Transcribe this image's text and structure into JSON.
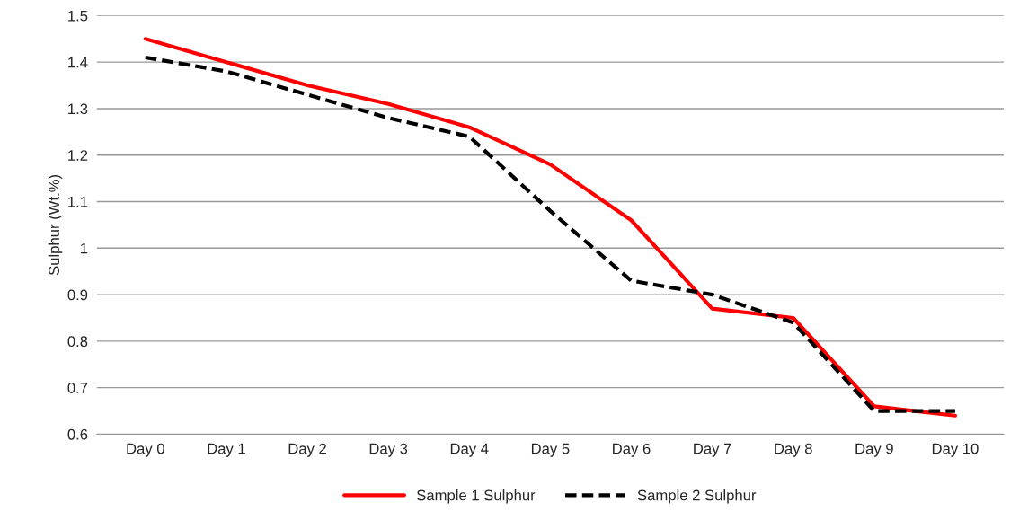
{
  "chart_data": {
    "type": "line",
    "ylabel": "Sulphur (Wt.%)",
    "categories": [
      "Day 0",
      "Day 1",
      "Day 2",
      "Day 3",
      "Day 4",
      "Day 5",
      "Day 6",
      "Day 7",
      "Day 8",
      "Day 9",
      "Day 10"
    ],
    "series": [
      {
        "name": "Sample 1 Sulphur",
        "color": "#ff0000",
        "line_style": "solid",
        "values": [
          1.45,
          1.4,
          1.35,
          1.31,
          1.26,
          1.18,
          1.06,
          0.87,
          0.85,
          0.66,
          0.64
        ]
      },
      {
        "name": "Sample 2 Sulphur",
        "color": "#000000",
        "line_style": "dashed",
        "values": [
          1.41,
          1.38,
          1.33,
          1.28,
          1.24,
          1.08,
          0.93,
          0.9,
          0.84,
          0.65,
          0.65
        ]
      }
    ],
    "ylim": [
      0.6,
      1.5
    ],
    "yticks": [
      0.6,
      0.7,
      0.8,
      0.9,
      1,
      1.1,
      1.2,
      1.3,
      1.4,
      1.5
    ],
    "grid": "y",
    "legend": "bottom"
  }
}
